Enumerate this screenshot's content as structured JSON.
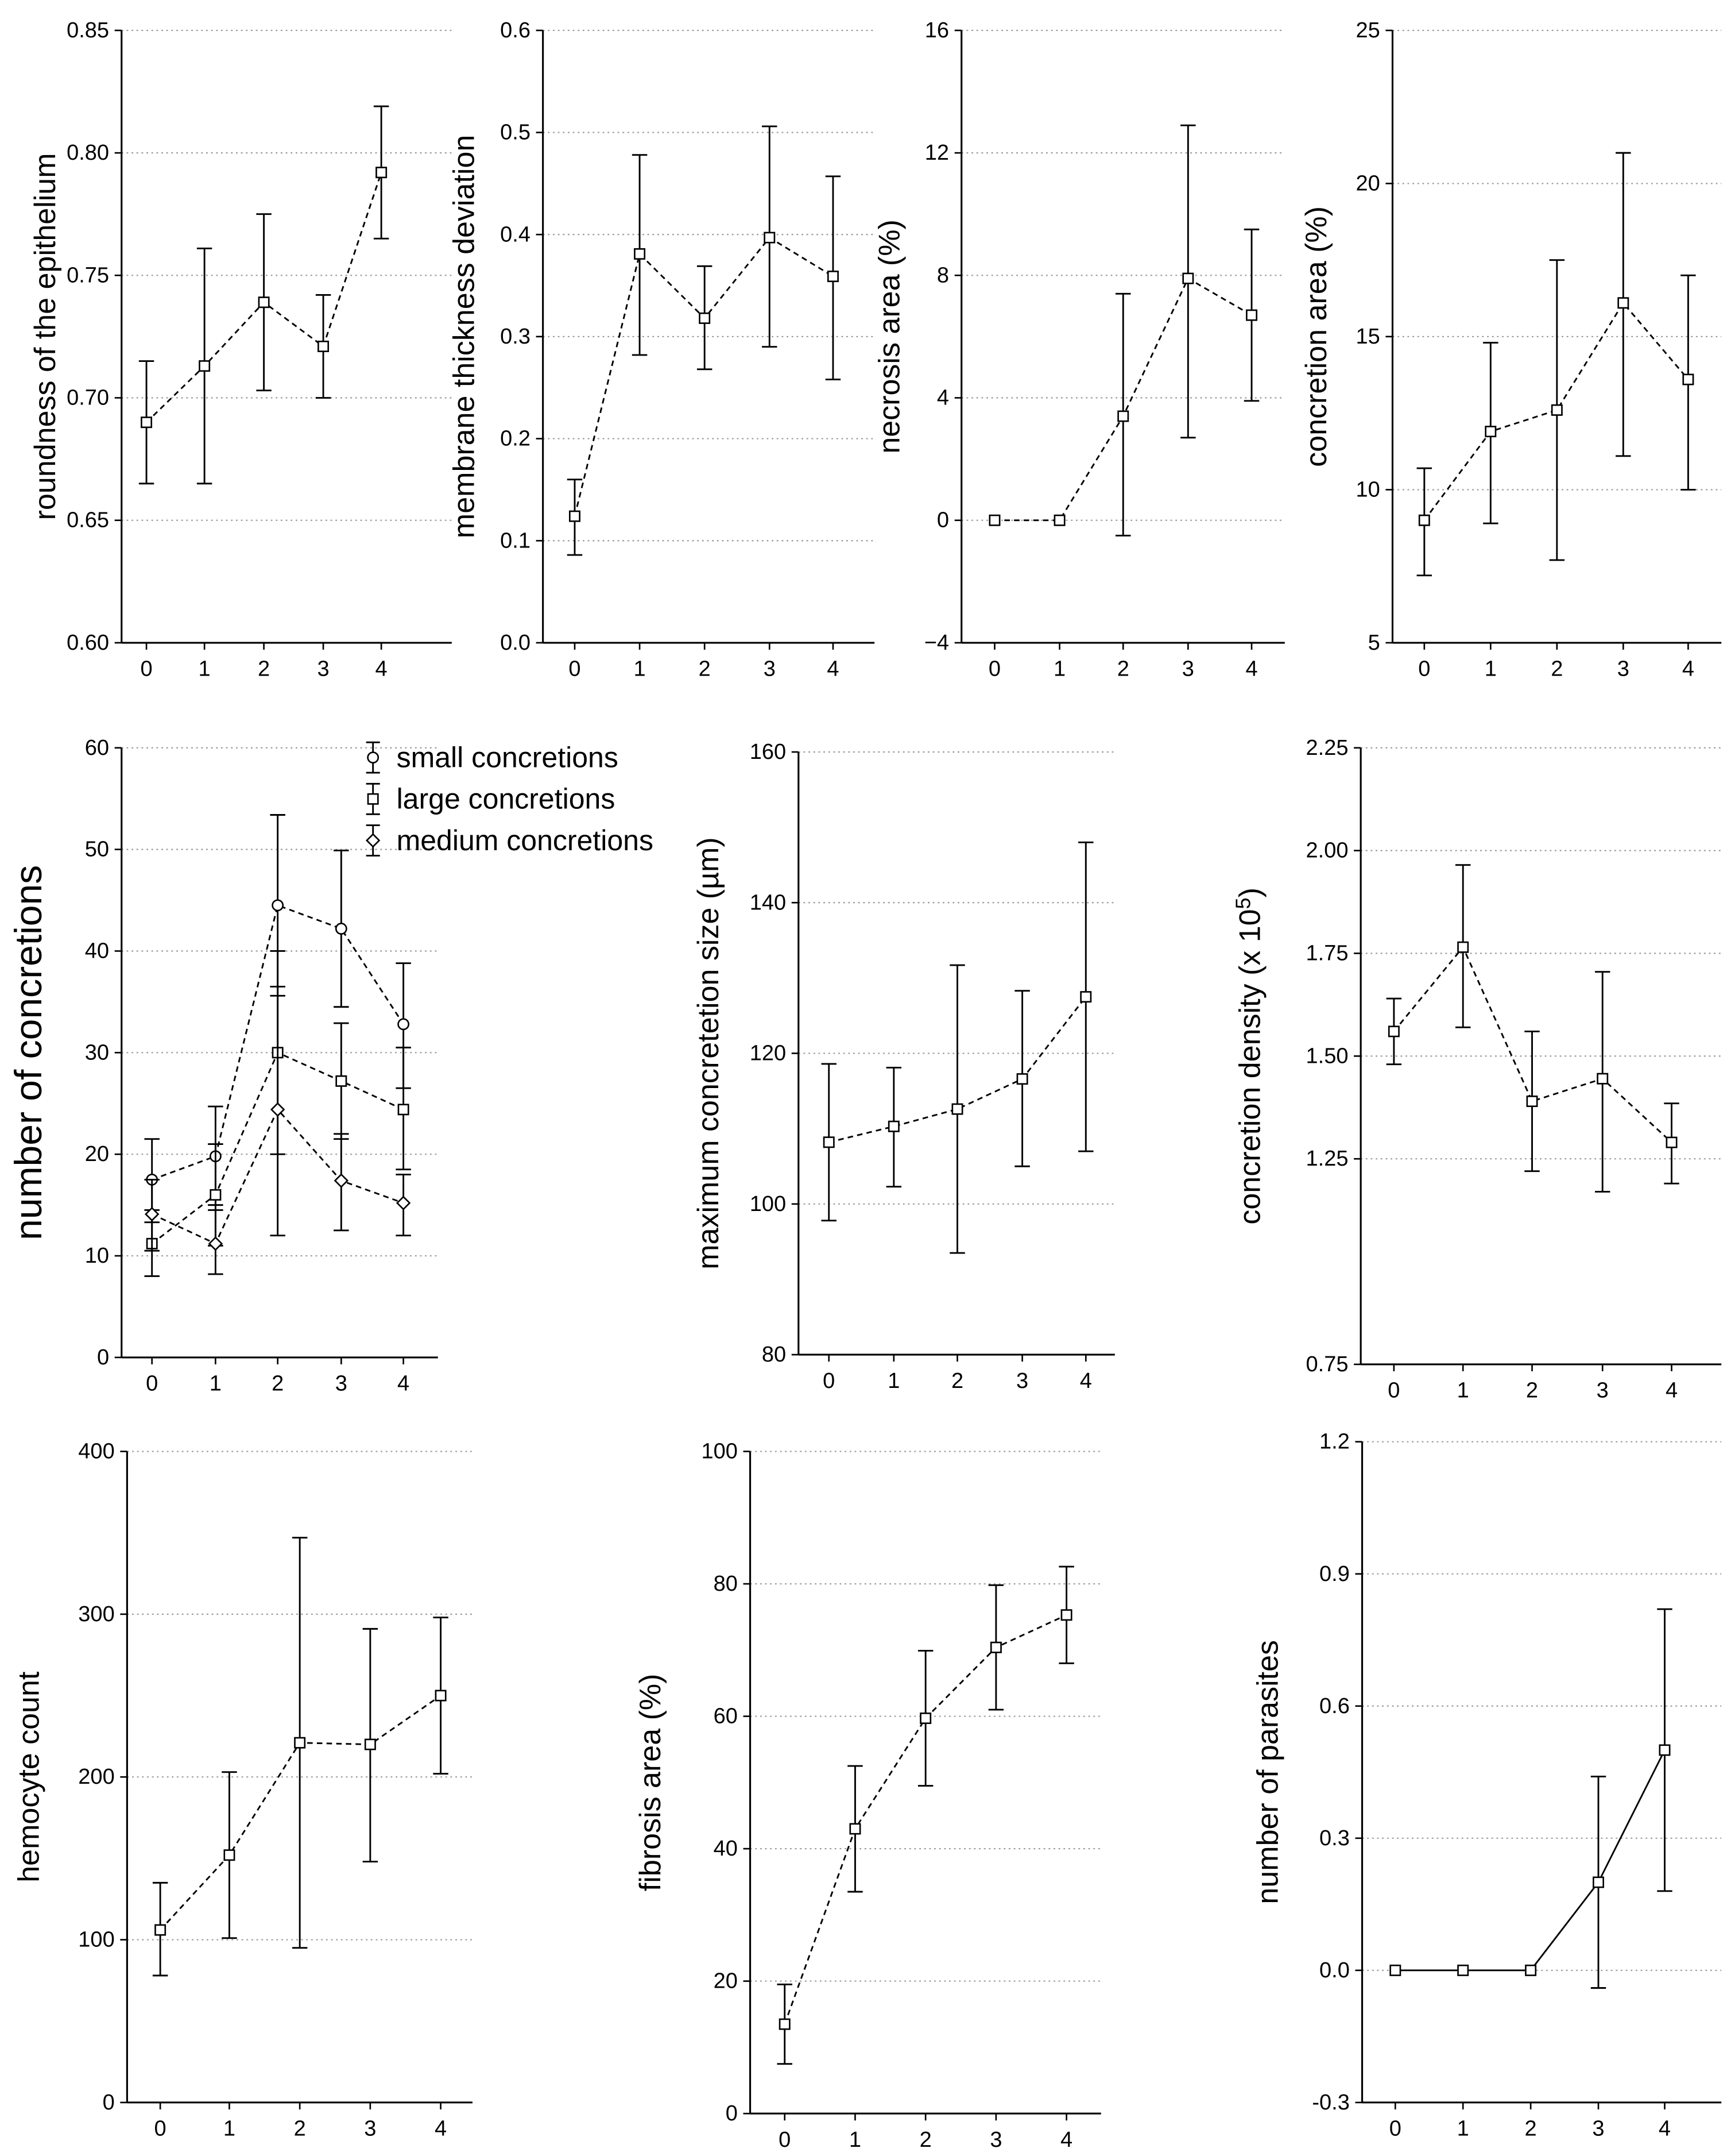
{
  "chart_data": [
    {
      "type": "line",
      "x": [
        0,
        1,
        2,
        3,
        4
      ],
      "series": [
        {
          "values": [
            0.69,
            0.713,
            0.739,
            0.721,
            0.792
          ],
          "err_low": [
            0.665,
            0.665,
            0.703,
            0.7,
            0.765
          ],
          "err_high": [
            0.715,
            0.761,
            0.775,
            0.742,
            0.819
          ]
        }
      ],
      "ylabel": "roundness of the epithelium",
      "ylim": [
        0.6,
        0.85
      ],
      "yticks": [
        "0.60",
        "0.65",
        "0.70",
        "0.75",
        "0.80",
        "0.85"
      ],
      "xticks": [
        "0",
        "1",
        "2",
        "3",
        "4"
      ],
      "grid": "horizontal dotted",
      "marker": "square",
      "line": "dashed"
    },
    {
      "type": "line",
      "x": [
        0,
        1,
        2,
        3,
        4
      ],
      "series": [
        {
          "values": [
            0.124,
            0.381,
            0.318,
            0.397,
            0.359
          ],
          "err_low": [
            0.086,
            0.282,
            0.268,
            0.29,
            0.258
          ],
          "err_high": [
            0.16,
            0.478,
            0.369,
            0.506,
            0.457
          ]
        }
      ],
      "ylabel": "membrane thickness deviation",
      "ylim": [
        0.0,
        0.6
      ],
      "yticks": [
        "0.0",
        "0.1",
        "0.2",
        "0.3",
        "0.4",
        "0.5",
        "0.6"
      ],
      "xticks": [
        "0",
        "1",
        "2",
        "3",
        "4"
      ],
      "grid": "horizontal dotted",
      "marker": "square",
      "line": "dashed"
    },
    {
      "type": "line",
      "x": [
        0,
        1,
        2,
        3,
        4
      ],
      "series": [
        {
          "values": [
            0,
            0,
            3.4,
            7.9,
            6.7
          ],
          "err_low": [
            0,
            0,
            -0.5,
            2.7,
            3.9
          ],
          "err_high": [
            0,
            0,
            7.4,
            12.9,
            9.5
          ]
        }
      ],
      "ylabel": "necrosis area (%)",
      "ylim": [
        -4,
        16
      ],
      "yticks": [
        "−4",
        "0",
        "4",
        "8",
        "12",
        "16"
      ],
      "xticks": [
        "0",
        "1",
        "2",
        "3",
        "4"
      ],
      "grid": "horizontal dotted",
      "marker": "square",
      "line": "dashed"
    },
    {
      "type": "line",
      "x": [
        0,
        1,
        2,
        3,
        4
      ],
      "series": [
        {
          "values": [
            9.0,
            11.9,
            12.6,
            16.1,
            13.6
          ],
          "err_low": [
            7.2,
            8.9,
            7.7,
            11.1,
            10.0
          ],
          "err_high": [
            10.7,
            14.8,
            17.5,
            21.0,
            17.0
          ]
        }
      ],
      "ylabel": "concretion area (%)",
      "ylim": [
        5,
        25
      ],
      "yticks": [
        "5",
        "10",
        "15",
        "20",
        "25"
      ],
      "xticks": [
        "0",
        "1",
        "2",
        "3",
        "4"
      ],
      "grid": "horizontal dotted",
      "marker": "square",
      "line": "dashed"
    },
    {
      "type": "line",
      "x": [
        0,
        1,
        2,
        3,
        4
      ],
      "series": [
        {
          "name": "small concretions",
          "marker": "circle",
          "values": [
            17.5,
            19.8,
            44.5,
            42.2,
            32.8
          ],
          "err_low": [
            13.3,
            15.0,
            35.6,
            34.5,
            26.5
          ],
          "err_high": [
            21.5,
            24.7,
            53.4,
            49.9,
            38.8
          ]
        },
        {
          "name": "large concretions",
          "marker": "square",
          "values": [
            11.2,
            16.0,
            30.0,
            27.2,
            24.4
          ],
          "err_low": [
            8.0,
            11.0,
            20.0,
            21.5,
            18.5
          ],
          "err_high": [
            14.5,
            21.0,
            40.0,
            32.9,
            30.5
          ]
        },
        {
          "name": "medium concretions",
          "marker": "diamond",
          "values": [
            14.1,
            11.2,
            24.4,
            17.4,
            15.2
          ],
          "err_low": [
            10.5,
            8.2,
            12.0,
            12.5,
            12.0
          ],
          "err_high": [
            17.5,
            14.5,
            36.5,
            22.0,
            18.0
          ]
        }
      ],
      "ylabel": "number of concretions",
      "ylim": [
        0,
        60
      ],
      "yticks": [
        "0",
        "10",
        "20",
        "30",
        "40",
        "50",
        "60"
      ],
      "xticks": [
        "0",
        "1",
        "2",
        "3",
        "4"
      ],
      "grid": "horizontal dotted",
      "legend": "top-right",
      "line": "dashed"
    },
    {
      "type": "line",
      "x": [
        0,
        1,
        2,
        3,
        4
      ],
      "series": [
        {
          "values": [
            108.2,
            110.3,
            112.6,
            116.6,
            127.5
          ],
          "err_low": [
            97.8,
            102.3,
            93.5,
            105.0,
            107.0
          ],
          "err_high": [
            118.6,
            118.1,
            131.7,
            128.3,
            148.0
          ]
        }
      ],
      "ylabel": "maximum concretetion size (µm)",
      "ylim": [
        80,
        160
      ],
      "yticks": [
        "80",
        "100",
        "120",
        "140",
        "160"
      ],
      "xticks": [
        "0",
        "1",
        "2",
        "3",
        "4"
      ],
      "grid": "horizontal dotted",
      "marker": "square",
      "line": "dashed"
    },
    {
      "type": "line",
      "x": [
        0,
        1,
        2,
        3,
        4
      ],
      "series": [
        {
          "values": [
            1.56,
            1.765,
            1.39,
            1.445,
            1.29
          ],
          "err_low": [
            1.48,
            1.57,
            1.22,
            1.17,
            1.19
          ],
          "err_high": [
            1.64,
            1.965,
            1.56,
            1.705,
            1.385
          ]
        }
      ],
      "ylabel": "concretion density (x 10",
      "ylabel_superscript": "5",
      "ylabel_suffix": ")",
      "ylim": [
        0.75,
        2.25
      ],
      "yticks": [
        "0.75",
        "1.25",
        "1.50",
        "1.75",
        "2.00",
        "2.25"
      ],
      "xticks": [
        "0",
        "1",
        "2",
        "3",
        "4"
      ],
      "grid": "horizontal dotted",
      "marker": "square",
      "line": "dashed"
    },
    {
      "type": "line",
      "x": [
        0,
        1,
        2,
        3,
        4
      ],
      "series": [
        {
          "values": [
            106,
            152,
            221,
            220,
            250
          ],
          "err_low": [
            78,
            101,
            95,
            148,
            202
          ],
          "err_high": [
            135,
            203,
            347,
            291,
            298
          ]
        }
      ],
      "ylabel": "hemocyte count",
      "ylim": [
        0,
        400
      ],
      "yticks": [
        "0",
        "100",
        "200",
        "300",
        "400"
      ],
      "xticks": [
        "0",
        "1",
        "2",
        "3",
        "4"
      ],
      "grid": "horizontal dotted",
      "marker": "square",
      "line": "dashed"
    },
    {
      "type": "line",
      "x": [
        0,
        1,
        2,
        3,
        4
      ],
      "series": [
        {
          "values": [
            13.5,
            43.0,
            59.7,
            70.4,
            75.3
          ],
          "err_low": [
            7.5,
            33.5,
            49.5,
            61.0,
            68.0
          ],
          "err_high": [
            19.5,
            52.5,
            69.9,
            79.8,
            82.6
          ]
        }
      ],
      "ylabel": "fibrosis area (%)",
      "ylim": [
        0,
        100
      ],
      "yticks": [
        "0",
        "20",
        "40",
        "60",
        "80",
        "100"
      ],
      "xticks": [
        "0",
        "1",
        "2",
        "3",
        "4"
      ],
      "grid": "horizontal dotted",
      "marker": "square",
      "line": "dashed"
    },
    {
      "type": "line",
      "x": [
        0,
        1,
        2,
        3,
        4
      ],
      "series": [
        {
          "values": [
            0,
            0,
            0,
            0.2,
            0.5
          ],
          "err_low": [
            0,
            0,
            0,
            -0.04,
            0.18
          ],
          "err_high": [
            0,
            0,
            0,
            0.44,
            0.82
          ]
        }
      ],
      "ylabel": "number of parasites",
      "ylim": [
        -0.3,
        1.2
      ],
      "yticks": [
        "-0.3",
        "0.0",
        "0.3",
        "0.6",
        "0.9",
        "1.2"
      ],
      "xticks": [
        "0",
        "1",
        "2",
        "3",
        "4"
      ],
      "grid": "horizontal dotted",
      "marker": "square",
      "line": "solid"
    }
  ]
}
